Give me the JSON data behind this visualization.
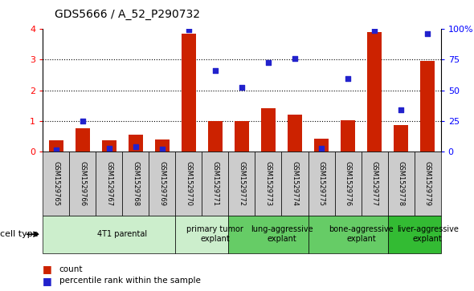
{
  "title": "GDS5666 / A_52_P290732",
  "samples": [
    "GSM1529765",
    "GSM1529766",
    "GSM1529767",
    "GSM1529768",
    "GSM1529769",
    "GSM1529770",
    "GSM1529771",
    "GSM1529772",
    "GSM1529773",
    "GSM1529774",
    "GSM1529775",
    "GSM1529776",
    "GSM1529777",
    "GSM1529778",
    "GSM1529779"
  ],
  "bar_values": [
    0.35,
    0.75,
    0.35,
    0.55,
    0.38,
    3.85,
    1.0,
    1.0,
    1.4,
    1.2,
    0.42,
    1.02,
    3.9,
    0.85,
    2.95
  ],
  "blue_values": [
    0.05,
    0.98,
    0.1,
    0.15,
    0.07,
    3.97,
    2.65,
    2.1,
    2.9,
    3.05,
    0.1,
    2.38,
    3.95,
    1.35,
    3.85
  ],
  "bar_color": "#cc2200",
  "blue_color": "#2222cc",
  "ylim_left": [
    0,
    4
  ],
  "ylim_right": [
    0,
    100
  ],
  "yticks_left": [
    0,
    1,
    2,
    3,
    4
  ],
  "yticks_right": [
    0,
    25,
    50,
    75,
    100
  ],
  "ytick_labels_right": [
    "0",
    "25",
    "50",
    "75",
    "100%"
  ],
  "cell_types": [
    {
      "label": "4T1 parental",
      "start": 0,
      "end": 5,
      "color": "#cceecc"
    },
    {
      "label": "primary tumor\nexplant",
      "start": 5,
      "end": 7,
      "color": "#cceecc"
    },
    {
      "label": "lung-aggressive\nexplant",
      "start": 7,
      "end": 10,
      "color": "#66cc66"
    },
    {
      "label": "bone-aggressive\nexplant",
      "start": 10,
      "end": 13,
      "color": "#66cc66"
    },
    {
      "label": "liver-aggressive\nexplant",
      "start": 13,
      "end": 15,
      "color": "#33bb33"
    }
  ],
  "cell_type_label": "cell type",
  "legend_count": "count",
  "legend_percentile": "percentile rank within the sample",
  "bar_width": 0.55,
  "sample_box_color": "#cccccc",
  "plot_bg": "#ffffff"
}
